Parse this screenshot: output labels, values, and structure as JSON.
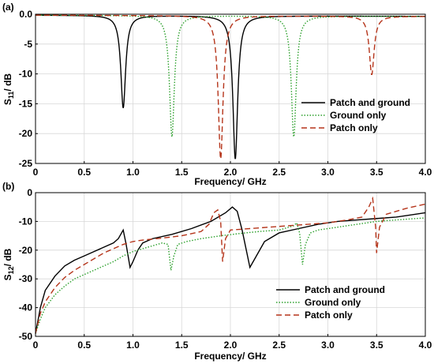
{
  "chart_data": [
    {
      "type": "line",
      "panel_label": "(a)",
      "xlabel": "Frequency/ GHz",
      "ylabel_main": "S",
      "ylabel_sub": "11",
      "ylabel_suffix": "/ dB",
      "xlim": [
        0,
        4.0
      ],
      "ylim": [
        -25,
        0
      ],
      "xticks": [
        0,
        0.5,
        1.0,
        1.5,
        2.0,
        2.5,
        3.0,
        3.5,
        4.0
      ],
      "xtick_labels": [
        "0",
        "0.5",
        "1.0",
        "1.5",
        "2.0",
        "2.5",
        "3.0",
        "3.5",
        "4.0"
      ],
      "yticks": [
        0,
        -5,
        -10,
        -15,
        -20,
        -25
      ],
      "ytick_labels": [
        "0.0",
        "-5",
        "-10",
        "-15",
        "-20",
        "-25"
      ],
      "legend_position": "lower-right",
      "series": [
        {
          "name": "Patch and ground",
          "color": "#000000",
          "style": "solid",
          "resonances": [
            [
              0.9,
              -15.5
            ],
            [
              2.05,
              -24.0
            ]
          ]
        },
        {
          "name": "Ground only",
          "color": "#2ca02c",
          "style": "dotted",
          "resonances": [
            [
              1.4,
              -20.3
            ],
            [
              2.65,
              -20.3
            ]
          ]
        },
        {
          "name": "Patch only",
          "color": "#b5341a",
          "style": "dashed",
          "resonances": [
            [
              1.9,
              -24.0
            ],
            [
              3.45,
              -9.8
            ]
          ]
        }
      ]
    },
    {
      "type": "line",
      "panel_label": "(b)",
      "xlabel": "Frequency/ GHz",
      "ylabel_main": "S",
      "ylabel_sub": "12",
      "ylabel_suffix": "/ dB",
      "xlim": [
        0,
        4.0
      ],
      "ylim": [
        -50,
        0
      ],
      "xticks": [
        0,
        0.5,
        1.0,
        1.5,
        2.0,
        2.5,
        3.0,
        3.5,
        4.0
      ],
      "xtick_labels": [
        "0",
        "0.5",
        "1.0",
        "1.5",
        "2.0",
        "2.5",
        "3.0",
        "3.5",
        "4.0"
      ],
      "yticks": [
        0,
        -10,
        -20,
        -30,
        -40,
        -50
      ],
      "ytick_labels": [
        "0",
        "-10",
        "-20",
        "-30",
        "-40",
        "-50"
      ],
      "legend_position": "lower-right",
      "series": [
        {
          "name": "Patch and ground",
          "color": "#000000",
          "style": "solid",
          "points": [
            [
              0,
              -49
            ],
            [
              0.05,
              -40
            ],
            [
              0.1,
              -34
            ],
            [
              0.2,
              -29
            ],
            [
              0.3,
              -25.5
            ],
            [
              0.4,
              -23.5
            ],
            [
              0.5,
              -22
            ],
            [
              0.6,
              -20.5
            ],
            [
              0.7,
              -19
            ],
            [
              0.8,
              -17.5
            ],
            [
              0.85,
              -16
            ],
            [
              0.9,
              -13
            ],
            [
              0.93,
              -18
            ],
            [
              0.97,
              -26
            ],
            [
              1.0,
              -24
            ],
            [
              1.05,
              -20
            ],
            [
              1.1,
              -17.5
            ],
            [
              1.2,
              -16
            ],
            [
              1.4,
              -14.5
            ],
            [
              1.6,
              -12.5
            ],
            [
              1.8,
              -10
            ],
            [
              1.95,
              -7
            ],
            [
              2.02,
              -5
            ],
            [
              2.07,
              -6.5
            ],
            [
              2.12,
              -13
            ],
            [
              2.2,
              -26
            ],
            [
              2.25,
              -23
            ],
            [
              2.35,
              -17
            ],
            [
              2.5,
              -14
            ],
            [
              2.7,
              -12.5
            ],
            [
              2.9,
              -11
            ],
            [
              3.1,
              -10
            ],
            [
              3.3,
              -9.5
            ],
            [
              3.5,
              -9
            ],
            [
              3.7,
              -8.5
            ],
            [
              3.9,
              -7.5
            ],
            [
              4.0,
              -7
            ]
          ]
        },
        {
          "name": "Ground only",
          "color": "#2ca02c",
          "style": "dotted",
          "points": [
            [
              0,
              -49
            ],
            [
              0.05,
              -44
            ],
            [
              0.1,
              -40
            ],
            [
              0.2,
              -35.5
            ],
            [
              0.3,
              -32.5
            ],
            [
              0.4,
              -30
            ],
            [
              0.5,
              -28.5
            ],
            [
              0.6,
              -27
            ],
            [
              0.7,
              -25.5
            ],
            [
              0.8,
              -24
            ],
            [
              0.9,
              -22
            ],
            [
              1.0,
              -20.5
            ],
            [
              1.1,
              -19.5
            ],
            [
              1.2,
              -18.5
            ],
            [
              1.3,
              -17.5
            ],
            [
              1.36,
              -18
            ],
            [
              1.39,
              -27
            ],
            [
              1.42,
              -22
            ],
            [
              1.46,
              -18
            ],
            [
              1.55,
              -17
            ],
            [
              1.7,
              -16
            ],
            [
              1.9,
              -15
            ],
            [
              2.1,
              -14.2
            ],
            [
              2.3,
              -13.5
            ],
            [
              2.5,
              -13
            ],
            [
              2.65,
              -11.5
            ],
            [
              2.68,
              -10.5
            ],
            [
              2.71,
              -14
            ],
            [
              2.74,
              -25
            ],
            [
              2.77,
              -18
            ],
            [
              2.82,
              -14
            ],
            [
              2.9,
              -13
            ],
            [
              3.1,
              -12
            ],
            [
              3.3,
              -11
            ],
            [
              3.5,
              -10
            ],
            [
              3.7,
              -9.5
            ],
            [
              3.9,
              -9
            ],
            [
              4.0,
              -8.8
            ]
          ]
        },
        {
          "name": "Patch only",
          "color": "#b5341a",
          "style": "dashed",
          "points": [
            [
              0,
              -49
            ],
            [
              0.05,
              -42
            ],
            [
              0.1,
              -38
            ],
            [
              0.2,
              -33
            ],
            [
              0.3,
              -29.5
            ],
            [
              0.4,
              -27
            ],
            [
              0.5,
              -25
            ],
            [
              0.6,
              -23
            ],
            [
              0.7,
              -21
            ],
            [
              0.8,
              -19.5
            ],
            [
              0.9,
              -18
            ],
            [
              1.0,
              -17
            ],
            [
              1.1,
              -16.5
            ],
            [
              1.3,
              -15.8
            ],
            [
              1.5,
              -15
            ],
            [
              1.7,
              -13.5
            ],
            [
              1.78,
              -11
            ],
            [
              1.83,
              -7
            ],
            [
              1.87,
              -6
            ],
            [
              1.9,
              -10
            ],
            [
              1.92,
              -24
            ],
            [
              1.95,
              -16
            ],
            [
              2.0,
              -13
            ],
            [
              2.2,
              -12.5
            ],
            [
              2.4,
              -12
            ],
            [
              2.6,
              -11.5
            ],
            [
              2.8,
              -11
            ],
            [
              3.0,
              -10.5
            ],
            [
              3.2,
              -9.5
            ],
            [
              3.35,
              -8.5
            ],
            [
              3.42,
              -5
            ],
            [
              3.46,
              -2
            ],
            [
              3.49,
              -12
            ],
            [
              3.5,
              -21
            ],
            [
              3.53,
              -12
            ],
            [
              3.6,
              -7.5
            ],
            [
              3.8,
              -5.5
            ],
            [
              4.0,
              -4
            ]
          ]
        }
      ]
    }
  ]
}
